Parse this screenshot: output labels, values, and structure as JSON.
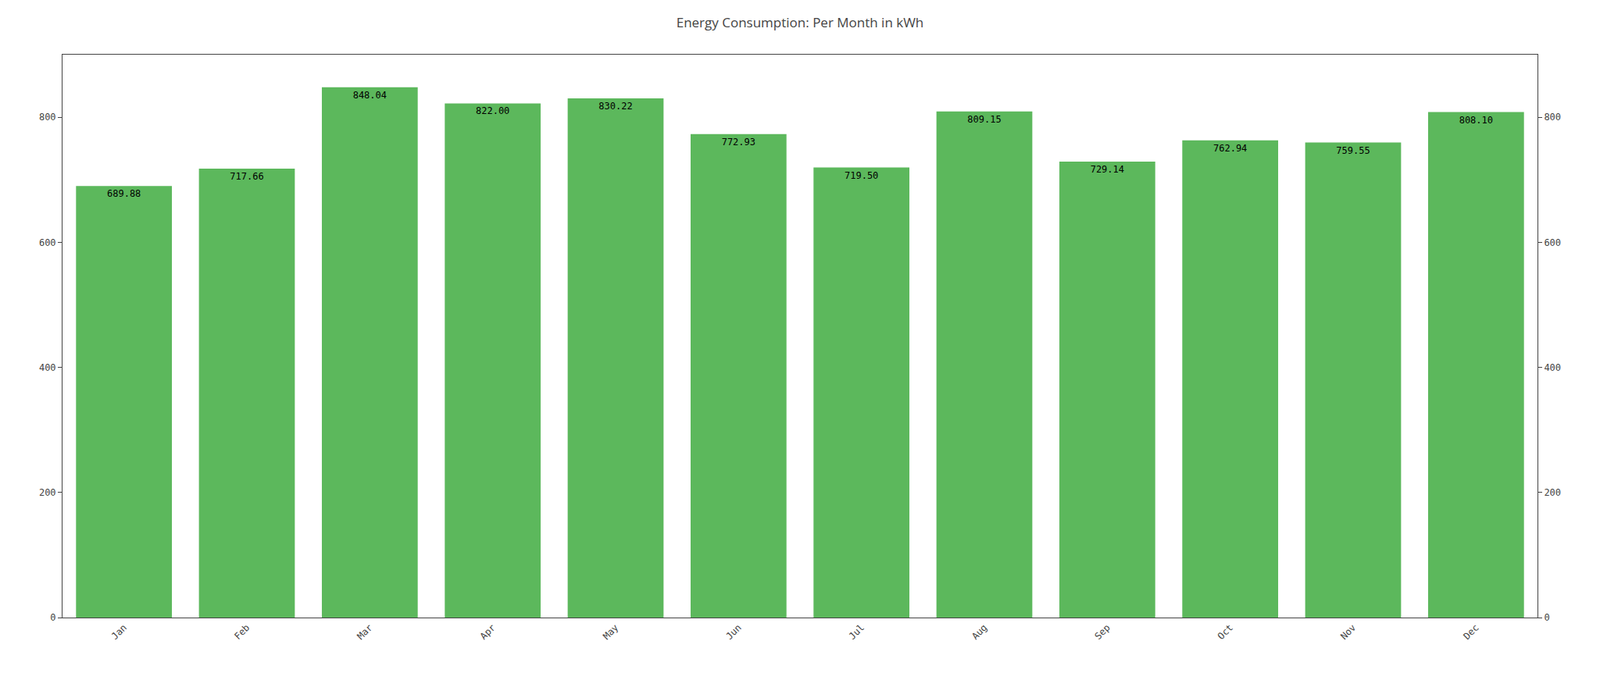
{
  "chart_data": {
    "type": "bar",
    "title": "Energy Consumption: Per Month in kWh",
    "categories": [
      "Jan",
      "Feb",
      "Mar",
      "Apr",
      "May",
      "Jun",
      "Jul",
      "Aug",
      "Sep",
      "Oct",
      "Nov",
      "Dec"
    ],
    "values": [
      689.88,
      717.66,
      848.04,
      822.0,
      830.22,
      772.93,
      719.5,
      809.15,
      729.14,
      762.94,
      759.55,
      808.1
    ],
    "value_labels": [
      "689.88",
      "717.66",
      "848.04",
      "822.00",
      "830.22",
      "772.93",
      "719.50",
      "809.15",
      "729.14",
      "762.94",
      "759.55",
      "808.10"
    ],
    "data_labels": true,
    "color": "#5cb85c",
    "ylim": [
      0,
      900
    ],
    "yticks": [
      0,
      200,
      400,
      600,
      800
    ],
    "y2lim": [
      0,
      900
    ],
    "y2ticks": [
      0,
      200,
      400,
      600,
      800
    ],
    "grid": false
  }
}
